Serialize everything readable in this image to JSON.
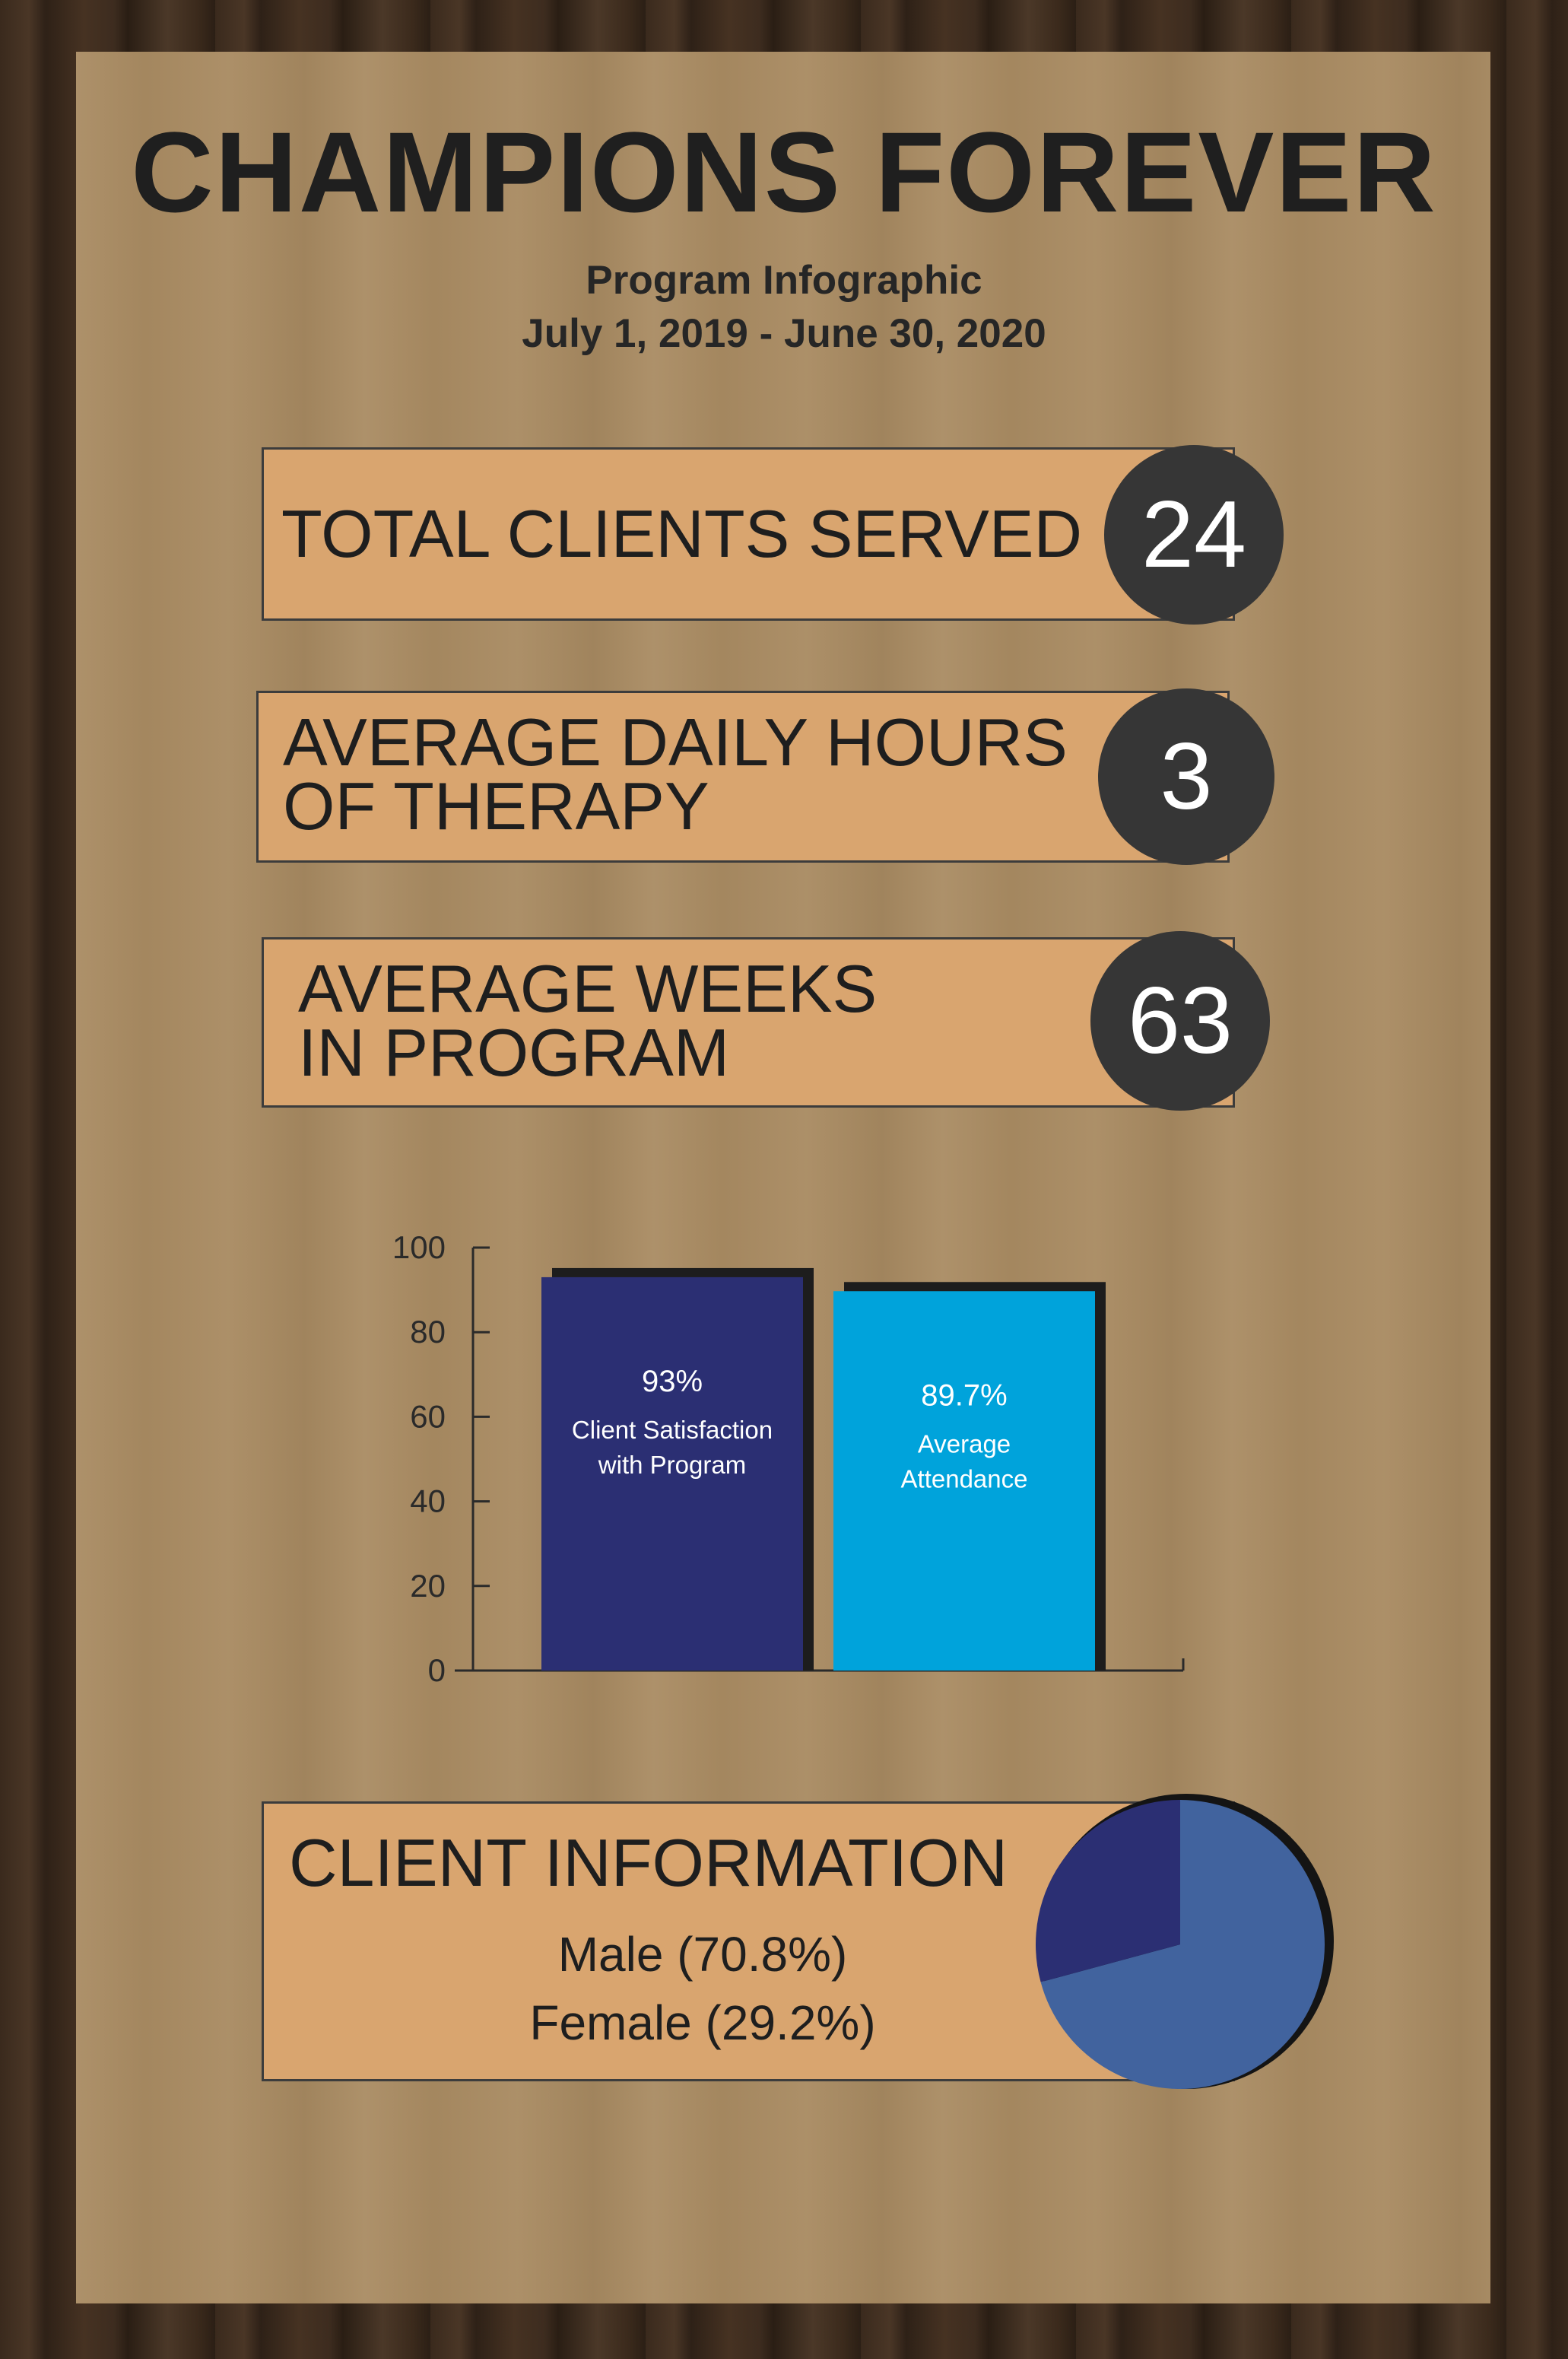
{
  "header": {
    "title": "CHAMPIONS FOREVER",
    "subtitle": "Program Infographic",
    "date_range": "July 1, 2019 - June 30, 2020"
  },
  "stats": [
    {
      "label_line1": "TOTAL CLIENTS SERVED",
      "label_line2": "",
      "value": "24"
    },
    {
      "label_line1": "AVERAGE DAILY HOURS",
      "label_line2": "OF THERAPY",
      "value": "3"
    },
    {
      "label_line1": "AVERAGE WEEKS",
      "label_line2": "IN PROGRAM",
      "value": "63"
    }
  ],
  "chart_data": [
    {
      "type": "bar",
      "categories": [
        "Client Satisfaction with Program",
        "Average Attendance"
      ],
      "values": [
        93,
        89.7
      ],
      "data_labels": [
        "93%",
        "89.7%"
      ],
      "bar_label_lines": [
        [
          "Client Satisfaction",
          "with Program"
        ],
        [
          "Average",
          "Attendance"
        ]
      ],
      "colors": [
        "#2b2f73",
        "#00a3db"
      ],
      "ylim": [
        0,
        100
      ],
      "yticks": [
        0,
        20,
        40,
        60,
        80,
        100
      ],
      "title": "",
      "xlabel": "",
      "ylabel": ""
    },
    {
      "type": "pie",
      "title": "CLIENT INFORMATION",
      "slices": [
        {
          "label": "Male (70.8%)",
          "value": 70.8,
          "color": "#41639e"
        },
        {
          "label": "Female (29.2%)",
          "value": 29.2,
          "color": "#2b2f73"
        }
      ]
    }
  ]
}
